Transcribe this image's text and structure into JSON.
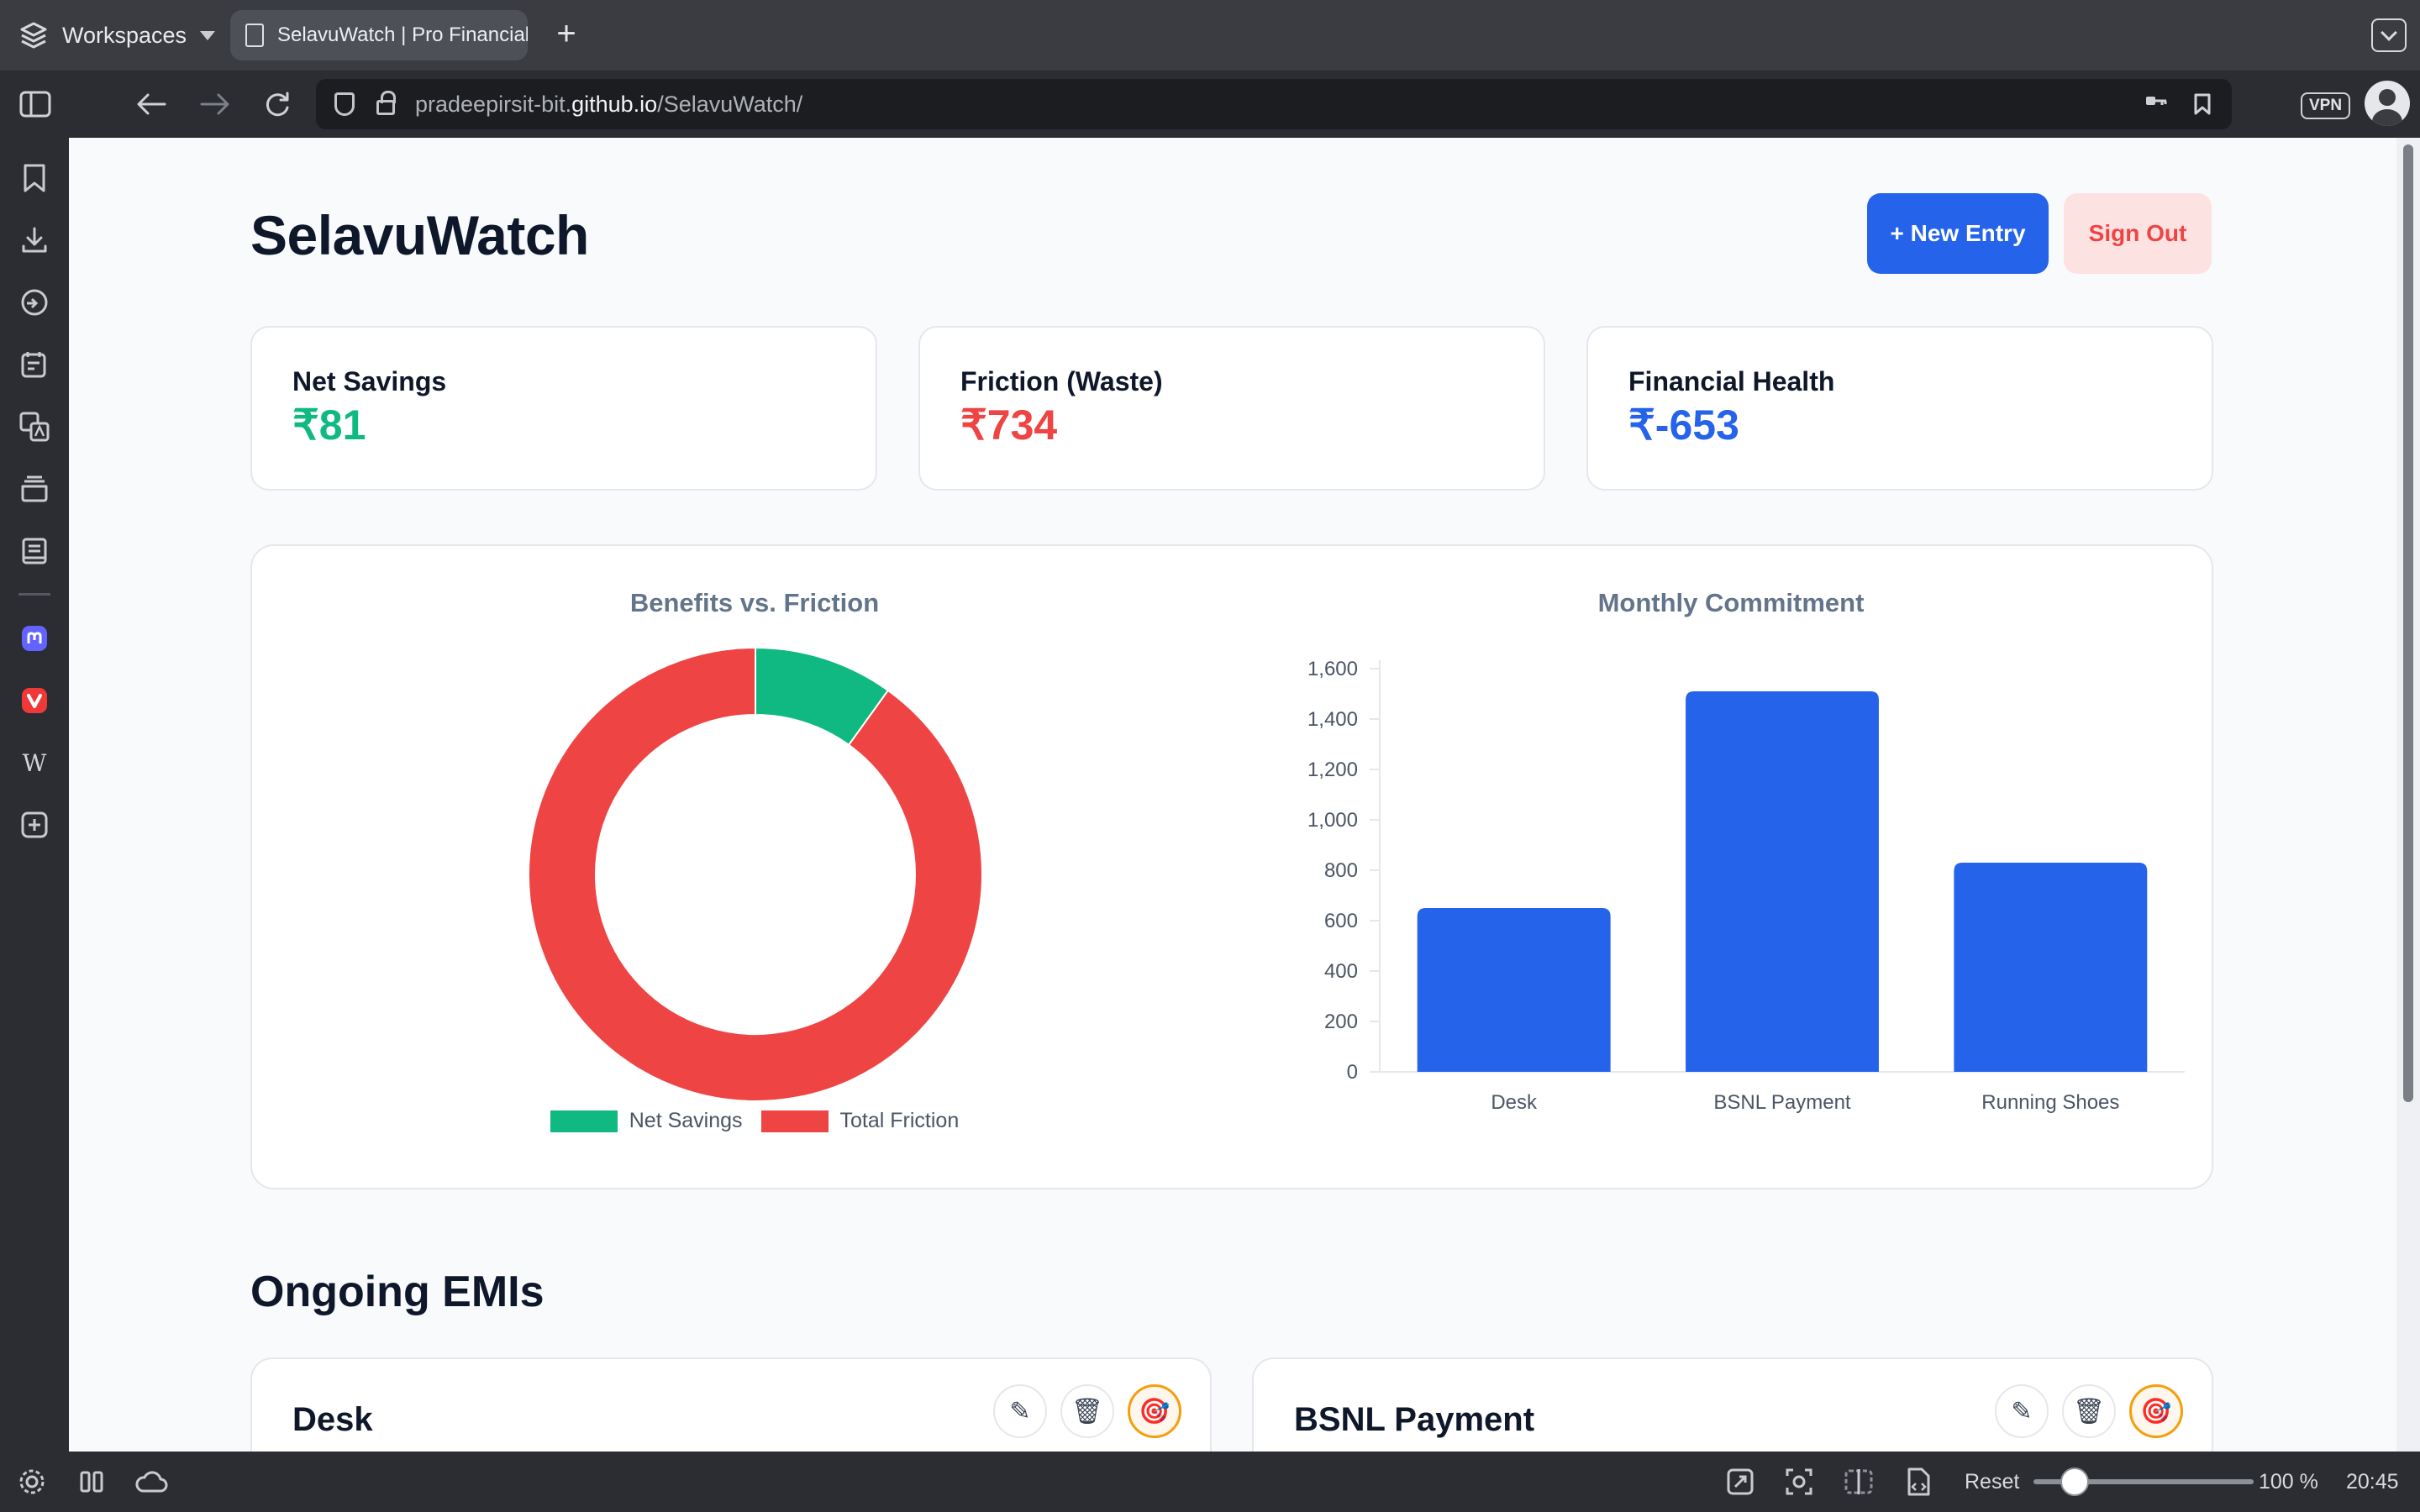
{
  "browser": {
    "workspaces_label": "Workspaces",
    "tab_title": "SelavuWatch | Pro Financial Tracker",
    "url_prefix": "pradeepirsit-bit.",
    "url_host": "github.io",
    "url_path": "/SelavuWatch/",
    "vpn_label": "VPN",
    "zoom_reset_label": "Reset",
    "zoom_level": "100 %",
    "clock": "20:45",
    "wiki_glyph": "W"
  },
  "app": {
    "title": "SelavuWatch",
    "new_entry_label": "+ New Entry",
    "sign_out_label": "Sign Out",
    "colors": {
      "green": "#10b981",
      "red": "#ef4444",
      "blue": "#2563eb"
    }
  },
  "stats": [
    {
      "label": "Net Savings",
      "value": "₹81",
      "color": "#10b981"
    },
    {
      "label": "Friction (Waste)",
      "value": "₹734",
      "color": "#ef4444"
    },
    {
      "label": "Financial Health",
      "value": "₹-653",
      "color": "#2563eb"
    }
  ],
  "chart_data": [
    {
      "type": "pie",
      "title": "Benefits vs. Friction",
      "categories": [
        "Net Savings",
        "Total Friction"
      ],
      "values": [
        81,
        734
      ],
      "colors": [
        "#10b981",
        "#ef4444"
      ],
      "legend": "bottom"
    },
    {
      "type": "bar",
      "title": "Monthly Commitment",
      "categories": [
        "Desk",
        "BSNL Payment",
        "Running Shoes"
      ],
      "values": [
        650,
        1510,
        830
      ],
      "ylim": [
        0,
        1600
      ],
      "yticks": [
        "1,600",
        "1,400",
        "1,200",
        "1,000",
        "800",
        "600",
        "400",
        "200",
        "0"
      ],
      "color": "#2563eb"
    }
  ],
  "emis": {
    "section_title": "Ongoing EMIs",
    "items": [
      {
        "name": "Desk"
      },
      {
        "name": "BSNL Payment"
      }
    ],
    "edit_icon": "✎",
    "delete_icon": "🗑",
    "goal_icon": "🎯"
  }
}
